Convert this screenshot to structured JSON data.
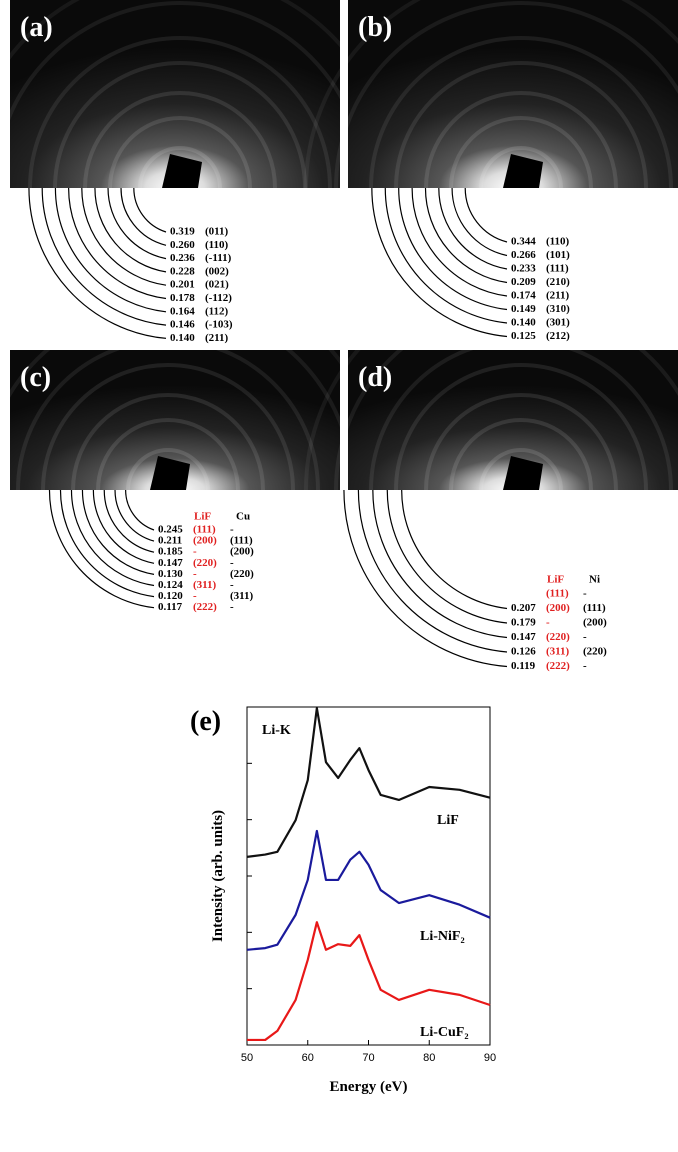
{
  "panels": [
    {
      "label": "(a)",
      "rows": [
        {
          "d": "0.319",
          "hkl": "(011)"
        },
        {
          "d": "0.260",
          "hkl": "(110)"
        },
        {
          "d": "0.236",
          "hkl": "(-111)"
        },
        {
          "d": "0.228",
          "hkl": "(002)"
        },
        {
          "d": "0.201",
          "hkl": "(021)"
        },
        {
          "d": "0.178",
          "hkl": "(-112)"
        },
        {
          "d": "0.164",
          "hkl": "(112)"
        },
        {
          "d": "0.146",
          "hkl": "(-103)"
        },
        {
          "d": "0.140",
          "hkl": "(211)"
        }
      ]
    },
    {
      "label": "(b)",
      "rows": [
        {
          "d": "0.344",
          "hkl": "(110)"
        },
        {
          "d": "0.266",
          "hkl": "(101)"
        },
        {
          "d": "0.233",
          "hkl": "(111)"
        },
        {
          "d": "0.209",
          "hkl": "(210)"
        },
        {
          "d": "0.174",
          "hkl": "(211)"
        },
        {
          "d": "0.149",
          "hkl": "(310)"
        },
        {
          "d": "0.140",
          "hkl": "(301)"
        },
        {
          "d": "0.125",
          "hkl": "(212)"
        }
      ]
    },
    {
      "label": "(c)",
      "columns": [
        "LiF",
        "Cu"
      ],
      "rows": [
        {
          "d": "0.245",
          "lif": "(111)",
          "other": "-"
        },
        {
          "d": "0.211",
          "lif": "(200)",
          "other": "(111)"
        },
        {
          "d": "0.185",
          "lif": "-",
          "other": "(200)"
        },
        {
          "d": "0.147",
          "lif": "(220)",
          "other": "-"
        },
        {
          "d": "0.130",
          "lif": "-",
          "other": "(220)"
        },
        {
          "d": "0.124",
          "lif": "(311)",
          "other": "-"
        },
        {
          "d": "0.120",
          "lif": "-",
          "other": "(311)"
        },
        {
          "d": "0.117",
          "lif": "(222)",
          "other": "-"
        }
      ]
    },
    {
      "label": "(d)",
      "columns": [
        "LiF",
        "Ni"
      ],
      "rows": [
        {
          "lif": "(111)",
          "other": "-"
        },
        {
          "d": "0.207",
          "lif": "(200)",
          "other": "(111)"
        },
        {
          "d": "0.179",
          "lif": "-",
          "other": "(200)"
        },
        {
          "d": "0.147",
          "lif": "(220)",
          "other": "-"
        },
        {
          "d": "0.126",
          "lif": "(311)",
          "other": "(220)"
        },
        {
          "d": "0.119",
          "lif": "(222)",
          "other": "-"
        }
      ]
    }
  ],
  "chart_data": {
    "type": "line",
    "label": "(e)",
    "annotation": "Li-K",
    "x_label": "Energy (eV)",
    "y_label": "Intensity (arb. units)",
    "x": [
      50,
      53,
      55,
      58,
      60,
      61.5,
      63,
      65,
      67,
      68.5,
      70,
      72,
      75,
      80,
      85,
      90
    ],
    "series": [
      {
        "name": "LiF",
        "color": "#111111",
        "values": [
          3.34,
          3.38,
          3.43,
          3.99,
          4.7,
          5.98,
          5.02,
          4.74,
          5.06,
          5.27,
          4.88,
          4.44,
          4.35,
          4.58,
          4.53,
          4.39
        ]
      },
      {
        "name": "Li-NiF₂",
        "color": "#1a1a9c",
        "values": [
          1.69,
          1.72,
          1.78,
          2.31,
          2.93,
          3.8,
          2.93,
          2.93,
          3.29,
          3.43,
          3.2,
          2.75,
          2.52,
          2.66,
          2.49,
          2.26
        ]
      },
      {
        "name": "Li-CuF₂",
        "color": "#e81818",
        "values": [
          0.09,
          0.09,
          0.25,
          0.8,
          1.51,
          2.18,
          1.69,
          1.79,
          1.76,
          1.95,
          1.51,
          0.98,
          0.8,
          0.98,
          0.89,
          0.71
        ]
      }
    ],
    "xlim": [
      50,
      90
    ],
    "xticks": [
      50,
      60,
      70,
      80,
      90
    ],
    "ylim": [
      0,
      6
    ],
    "yticks": [
      1,
      2,
      3,
      4,
      5
    ]
  }
}
